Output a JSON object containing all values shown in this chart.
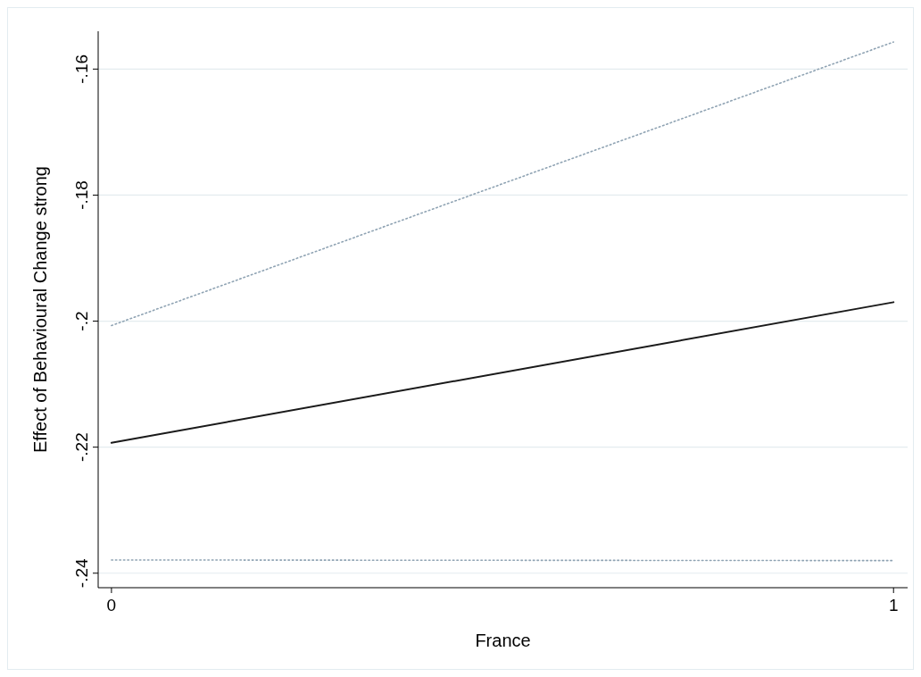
{
  "chart_data": {
    "type": "line",
    "xlabel": "France",
    "ylabel": "Effect of Behavioural Change strong",
    "x": [
      0,
      1
    ],
    "xlim": [
      -0.017,
      1.018
    ],
    "xticks": [
      0,
      1
    ],
    "ylim": [
      -0.2423,
      -0.154
    ],
    "yticks": [
      {
        "value": -0.16,
        "label": "-.16"
      },
      {
        "value": -0.18,
        "label": "-.18"
      },
      {
        "value": -0.2,
        "label": "-.2"
      },
      {
        "value": -0.22,
        "label": "-.22"
      },
      {
        "value": -0.24,
        "label": "-.24"
      }
    ],
    "grid": "y",
    "series": [
      {
        "color": "#1a1a1a",
        "values": [
          -0.2193,
          -0.197
        ],
        "line_style": "solid"
      },
      {
        "color": "#8fa3b3",
        "values": [
          -0.2007,
          -0.1557
        ],
        "line_style": "dotted"
      },
      {
        "color": "#8fa3b3",
        "values": [
          -0.2379,
          -0.238
        ],
        "line_style": "dotted"
      }
    ]
  }
}
